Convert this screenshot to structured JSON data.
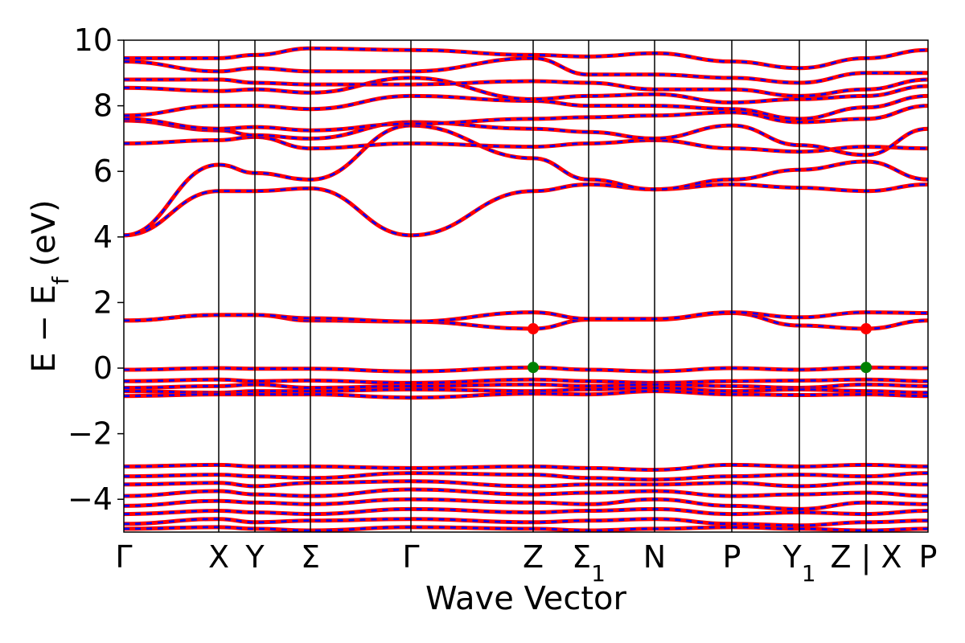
{
  "chart_data": {
    "type": "line",
    "title": "",
    "xlabel": "Wave Vector",
    "ylabel_main": "E − E",
    "ylabel_sub": "f",
    "ylabel_unit": " (eV)",
    "ylim": [
      -5,
      10
    ],
    "yticks": [
      -4,
      -2,
      0,
      2,
      4,
      6,
      8,
      10
    ],
    "ytick_labels": [
      "−4",
      "−2",
      "0",
      "2",
      "4",
      "6",
      "8",
      "10"
    ],
    "grid": false,
    "xlim": [
      0,
      1
    ],
    "kpoints": [
      {
        "label": "Γ",
        "sub": "",
        "x": 0.0
      },
      {
        "label": "X",
        "sub": "",
        "x": 0.118
      },
      {
        "label": "Y",
        "sub": "",
        "x": 0.163
      },
      {
        "label": "Σ",
        "sub": "",
        "x": 0.232
      },
      {
        "label": "Γ",
        "sub": "",
        "x": 0.357
      },
      {
        "label": "Z",
        "sub": "",
        "x": 0.509
      },
      {
        "label": "Σ",
        "sub": "1",
        "x": 0.578
      },
      {
        "label": "N",
        "sub": "",
        "x": 0.66
      },
      {
        "label": "P",
        "sub": "",
        "x": 0.756
      },
      {
        "label": "Y",
        "sub": "1",
        "x": 0.84
      },
      {
        "label": "Z | X",
        "sub": "",
        "x": 0.923
      },
      {
        "label": "P",
        "sub": "",
        "x": 1.0
      }
    ],
    "colors": {
      "line_primary": "#ff0000",
      "line_dashed": "#0000ff",
      "vbm_marker": "#008000",
      "cbm_marker": "#ff0000",
      "frame": "#000000"
    },
    "markers": [
      {
        "name": "CBM",
        "x": 0.509,
        "y": 1.2,
        "color": "#ff0000"
      },
      {
        "name": "CBM",
        "x": 0.923,
        "y": 1.2,
        "color": "#ff0000"
      },
      {
        "name": "VBM",
        "x": 0.509,
        "y": 0.02,
        "color": "#008000"
      },
      {
        "name": "VBM",
        "x": 0.923,
        "y": 0.02,
        "color": "#008000"
      }
    ],
    "series": [
      {
        "values": [
          4.05,
          5.4,
          5.4,
          5.48,
          4.05,
          5.4,
          5.6,
          5.45,
          5.6,
          5.5,
          5.4,
          5.6
        ]
      },
      {
        "values": [
          4.05,
          6.2,
          5.95,
          5.75,
          7.4,
          6.4,
          5.75,
          5.45,
          5.75,
          6.05,
          6.3,
          5.75
        ]
      },
      {
        "values": [
          1.45,
          1.62,
          1.62,
          1.45,
          1.42,
          1.2,
          1.48,
          1.48,
          1.68,
          1.3,
          1.2,
          1.45
        ]
      },
      {
        "values": [
          1.45,
          1.62,
          1.62,
          1.52,
          1.42,
          1.7,
          1.5,
          1.5,
          1.7,
          1.55,
          1.7,
          1.68
        ]
      },
      {
        "values": [
          6.85,
          6.95,
          7.05,
          6.7,
          6.85,
          6.75,
          6.85,
          6.95,
          6.7,
          6.6,
          6.75,
          6.7
        ]
      },
      {
        "values": [
          7.55,
          7.25,
          7.1,
          7.0,
          7.5,
          7.3,
          7.2,
          7.0,
          7.4,
          6.8,
          6.5,
          7.3
        ]
      },
      {
        "values": [
          7.6,
          7.3,
          7.35,
          7.25,
          7.45,
          7.6,
          7.65,
          7.7,
          7.8,
          7.5,
          7.6,
          8.0
        ]
      },
      {
        "values": [
          7.7,
          8.0,
          8.0,
          7.9,
          8.3,
          8.15,
          8.0,
          8.0,
          7.9,
          7.6,
          7.95,
          8.3
        ]
      },
      {
        "values": [
          8.55,
          8.45,
          8.5,
          8.4,
          8.85,
          8.2,
          8.3,
          8.35,
          8.1,
          8.2,
          8.3,
          8.6
        ]
      },
      {
        "values": [
          8.8,
          8.8,
          8.7,
          8.65,
          8.65,
          8.75,
          8.7,
          8.5,
          8.5,
          8.3,
          8.5,
          8.8
        ]
      },
      {
        "values": [
          9.35,
          9.05,
          9.15,
          9.05,
          9.05,
          9.45,
          8.95,
          8.95,
          8.85,
          8.7,
          9.0,
          9.0
        ]
      },
      {
        "values": [
          9.45,
          9.45,
          9.55,
          9.75,
          9.7,
          9.55,
          9.5,
          9.6,
          9.35,
          9.15,
          9.45,
          9.7
        ]
      },
      {
        "values": [
          -0.05,
          0.0,
          -0.02,
          -0.02,
          -0.1,
          0.02,
          -0.05,
          -0.1,
          0.0,
          -0.05,
          0.02,
          0.0
        ]
      },
      {
        "values": [
          -0.4,
          -0.35,
          -0.4,
          -0.38,
          -0.45,
          -0.35,
          -0.4,
          -0.45,
          -0.4,
          -0.38,
          -0.35,
          -0.4
        ]
      },
      {
        "values": [
          -0.6,
          -0.55,
          -0.5,
          -0.6,
          -0.55,
          -0.5,
          -0.55,
          -0.5,
          -0.55,
          -0.6,
          -0.5,
          -0.55
        ]
      },
      {
        "values": [
          -0.7,
          -0.75,
          -0.7,
          -0.7,
          -0.65,
          -0.7,
          -0.65,
          -0.6,
          -0.7,
          -0.65,
          -0.7,
          -0.75
        ]
      },
      {
        "values": [
          -0.85,
          -0.8,
          -0.8,
          -0.8,
          -0.9,
          -0.78,
          -0.8,
          -0.7,
          -0.8,
          -0.82,
          -0.8,
          -0.85
        ]
      },
      {
        "values": [
          -3.0,
          -2.95,
          -3.0,
          -3.0,
          -3.05,
          -3.0,
          -3.05,
          -3.1,
          -2.95,
          -3.0,
          -2.95,
          -3.0
        ]
      },
      {
        "values": [
          -3.3,
          -3.25,
          -3.3,
          -3.35,
          -3.2,
          -3.25,
          -3.35,
          -3.4,
          -3.3,
          -3.25,
          -3.3,
          -3.2
        ]
      },
      {
        "values": [
          -3.55,
          -3.5,
          -3.6,
          -3.5,
          -3.45,
          -3.6,
          -3.55,
          -3.55,
          -3.5,
          -3.6,
          -3.5,
          -3.55
        ]
      },
      {
        "values": [
          -3.9,
          -3.75,
          -3.85,
          -3.9,
          -3.7,
          -3.85,
          -3.8,
          -3.75,
          -3.9,
          -3.85,
          -3.8,
          -3.9
        ]
      },
      {
        "values": [
          -4.2,
          -4.05,
          -4.1,
          -4.15,
          -4.0,
          -4.1,
          -4.15,
          -4.0,
          -4.2,
          -4.3,
          -4.1,
          -4.15
        ]
      },
      {
        "values": [
          -4.45,
          -4.35,
          -4.4,
          -4.45,
          -4.3,
          -4.4,
          -4.35,
          -4.3,
          -4.45,
          -4.4,
          -4.45,
          -4.35
        ]
      },
      {
        "values": [
          -4.75,
          -4.6,
          -4.7,
          -4.65,
          -4.6,
          -4.7,
          -4.65,
          -4.6,
          -4.75,
          -4.8,
          -4.7,
          -4.65
        ]
      },
      {
        "values": [
          -4.9,
          -4.85,
          -4.9,
          -4.95,
          -4.85,
          -4.9,
          -4.95,
          -4.9,
          -4.85,
          -4.9,
          -4.95,
          -4.9
        ]
      }
    ]
  }
}
